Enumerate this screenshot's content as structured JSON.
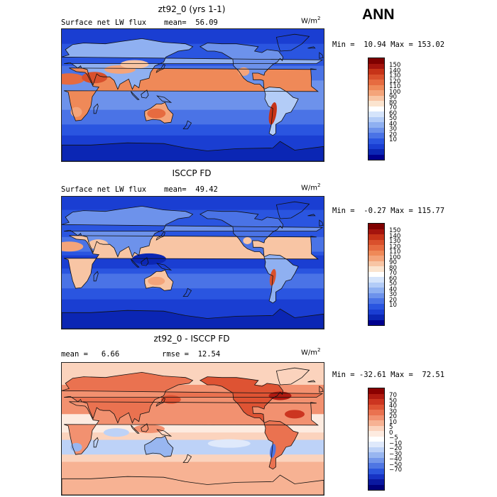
{
  "panels": [
    {
      "title": "zt92_0 (yrs 1-1)",
      "label": "Surface net LW flux",
      "stat1": "mean=  56.09",
      "stat2": "",
      "unit": "W/m",
      "unit_exp": "2",
      "minmax": "Min =  10.94 Max = 153.02",
      "legend_ticks": [
        "150",
        "140",
        "130",
        "120",
        "110",
        "100",
        "90",
        "80",
        "70",
        "60",
        "50",
        "40",
        "30",
        "20",
        "10"
      ],
      "colors": [
        "#7f0000",
        "#a4140d",
        "#c63318",
        "#d9502c",
        "#e66b40",
        "#ef8958",
        "#f4a47a",
        "#f8c5a4",
        "#fbe4cf",
        "#ffffff",
        "#d5e4fb",
        "#b3ccf7",
        "#8fb0f1",
        "#6d92eb",
        "#4a73e6",
        "#2a55e0",
        "#1a3ed2",
        "#0b26b4",
        "#00008e"
      ]
    },
    {
      "title": "ISCCP FD",
      "label": "Surface net LW flux",
      "stat1": "mean=  49.42",
      "stat2": "",
      "unit": "W/m",
      "unit_exp": "2",
      "minmax": "Min =  -0.27 Max = 115.77",
      "legend_ticks": [
        "150",
        "140",
        "130",
        "120",
        "110",
        "100",
        "90",
        "80",
        "70",
        "60",
        "50",
        "40",
        "30",
        "20",
        "10"
      ],
      "colors": [
        "#7f0000",
        "#a4140d",
        "#c63318",
        "#d9502c",
        "#e66b40",
        "#ef8958",
        "#f4a47a",
        "#f8c5a4",
        "#fbe4cf",
        "#ffffff",
        "#d5e4fb",
        "#b3ccf7",
        "#8fb0f1",
        "#6d92eb",
        "#4a73e6",
        "#2a55e0",
        "#1a3ed2",
        "#0b26b4",
        "#00008e"
      ]
    },
    {
      "title": "zt92_0 - ISCCP FD",
      "label": "mean =   6.66",
      "stat1": "",
      "stat2": "rmse =  12.54",
      "unit": "W/m",
      "unit_exp": "2",
      "minmax": "Min = -32.61 Max =  72.51",
      "legend_ticks": [
        "70",
        "50",
        "40",
        "30",
        "20",
        "10",
        "5",
        "0",
        "−5",
        "−10",
        "−20",
        "−30",
        "−40",
        "−50",
        "−70"
      ],
      "colors": [
        "#8a0000",
        "#b01a10",
        "#cc3520",
        "#de5333",
        "#ea7250",
        "#f29170",
        "#f7b293",
        "#fbd3bd",
        "#fdebe0",
        "#ffffff",
        "#dfe9fb",
        "#bdd2f7",
        "#98b6f0",
        "#7497ea",
        "#4f76e3",
        "#2b55dc",
        "#1733c4",
        "#0a18a0",
        "#00007a"
      ]
    }
  ],
  "season": "ANN"
}
